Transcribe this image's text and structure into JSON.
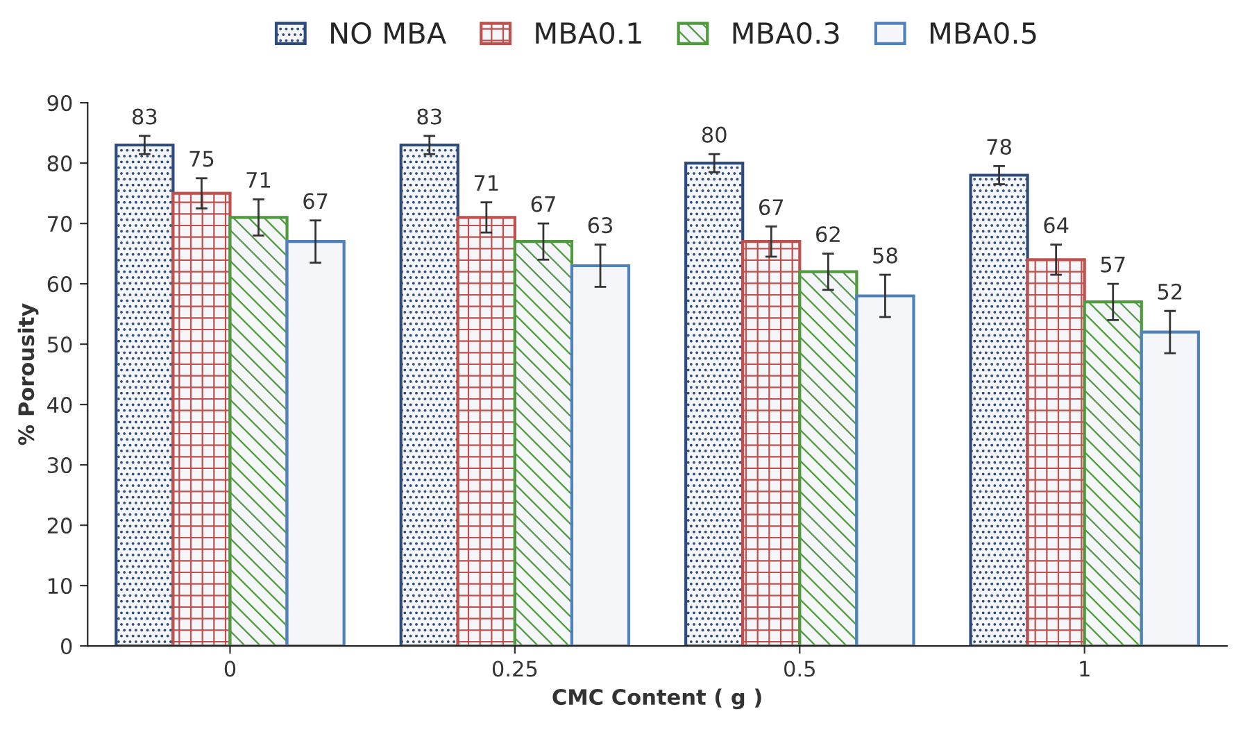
{
  "chart_data": {
    "type": "bar",
    "xlabel": "CMC Content ( g )",
    "ylabel": "% Porousity",
    "categories": [
      "0",
      "0.25",
      "0.5",
      "1"
    ],
    "series": [
      {
        "name": "NO MBA",
        "color": "#2f4b7c",
        "values": [
          83,
          83,
          80,
          78
        ],
        "errors": [
          1.5,
          1.5,
          1.5,
          1.5
        ]
      },
      {
        "name": "MBA0.1",
        "color": "#c0504d",
        "values": [
          75,
          71,
          67,
          64
        ],
        "errors": [
          2.5,
          2.5,
          2.5,
          2.5
        ]
      },
      {
        "name": "MBA0.3",
        "color": "#4e9a3c",
        "values": [
          71,
          67,
          62,
          57
        ],
        "errors": [
          3,
          3,
          3,
          3
        ]
      },
      {
        "name": "MBA0.5",
        "color": "#4f81bd",
        "values": [
          67,
          63,
          58,
          52
        ],
        "errors": [
          3.5,
          3.5,
          3.5,
          3.5
        ]
      }
    ],
    "ylim": [
      0,
      90
    ],
    "yticks": [
      0,
      10,
      20,
      30,
      40,
      50,
      60,
      70,
      80,
      90
    ],
    "data_labels": true,
    "legend": "top",
    "grid": false
  }
}
